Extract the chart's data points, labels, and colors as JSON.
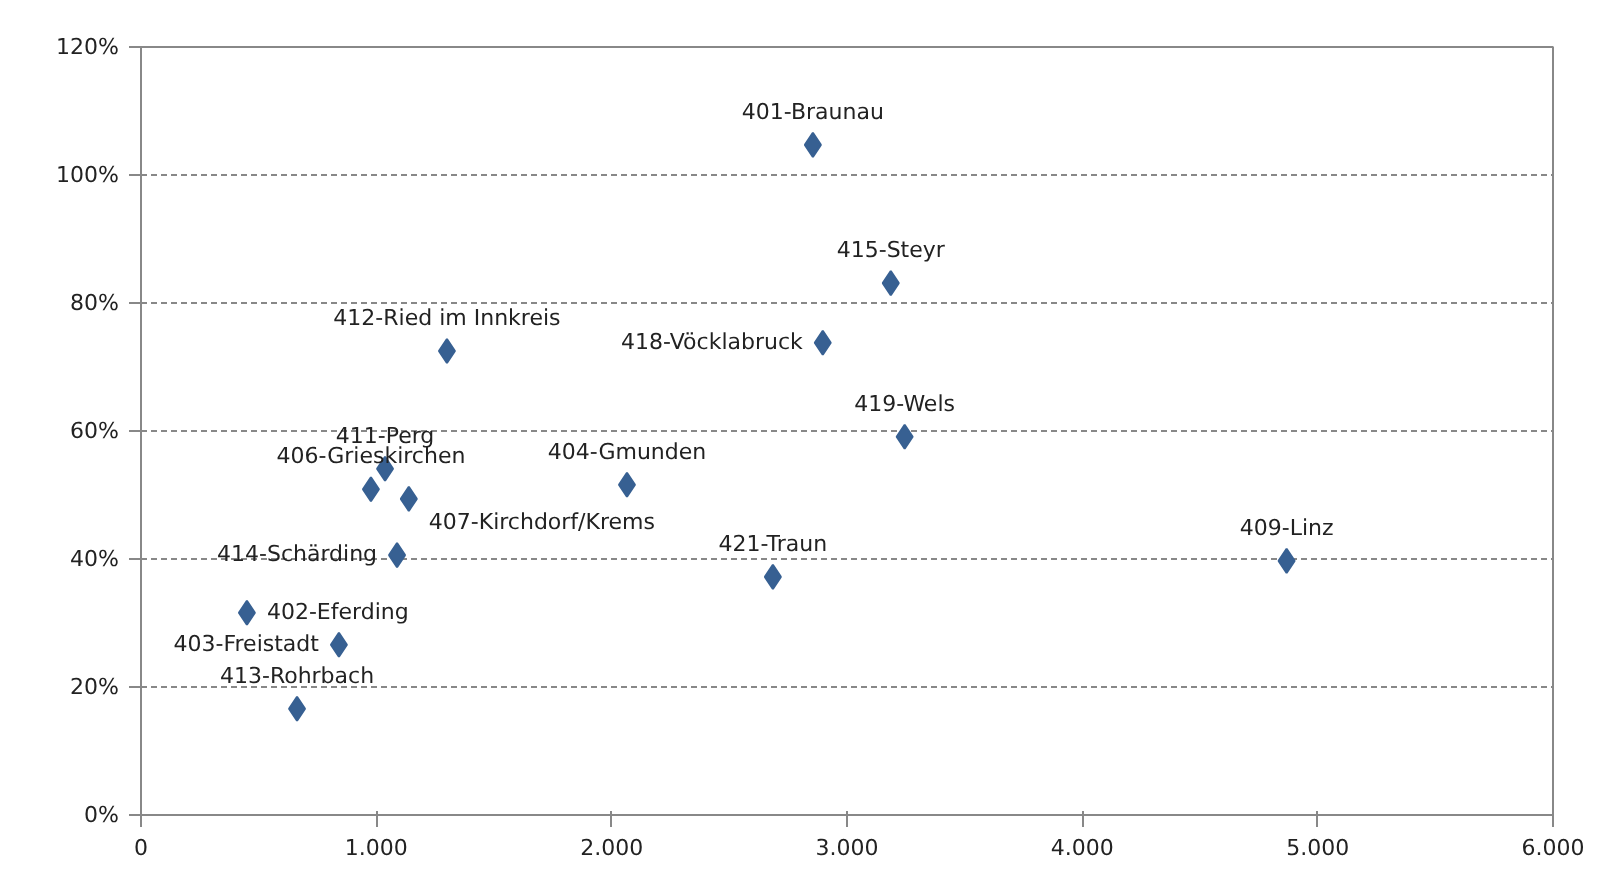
{
  "chart_data": {
    "type": "scatter",
    "marker": "diamond",
    "grid": "y",
    "xlim": [
      0,
      6000
    ],
    "ylim": [
      0,
      120
    ],
    "xticks": [
      0,
      {
        "value": 1000,
        "label": "1.000"
      },
      {
        "value": 2000,
        "label": "2.000"
      },
      {
        "value": 3000,
        "label": "3.000"
      },
      {
        "value": 4000,
        "label": "4.000"
      },
      {
        "value": 5000,
        "label": "5.000"
      },
      {
        "value": 6000,
        "label": "6.000"
      }
    ],
    "yticks": [
      {
        "value": 0,
        "label": "0%"
      },
      {
        "value": 20,
        "label": "20%"
      },
      {
        "value": 40,
        "label": "40%"
      },
      {
        "value": 60,
        "label": "60%"
      },
      {
        "value": 80,
        "label": "80%"
      },
      {
        "value": 100,
        "label": "100%"
      },
      {
        "value": 120,
        "label": "120%"
      }
    ],
    "series": [
      {
        "color": "#376092",
        "x": [
          2855,
          3186,
          2897,
          1300,
          3245,
          2065,
          1037,
          977,
          1138,
          1088,
          2685,
          4868,
          450,
          841,
          663
        ],
        "values": [
          104.7,
          83.1,
          73.8,
          72.5,
          59.1,
          51.6,
          54.1,
          50.9,
          49.4,
          40.6,
          37.2,
          39.7,
          31.6,
          26.6,
          16.6
        ]
      }
    ],
    "annotations": [
      {
        "text": "401-Braunau",
        "x": 2855,
        "y": 104.7
      },
      {
        "text": "415-Steyr",
        "x": 3186,
        "y": 83.1
      },
      {
        "text": "418-Vöcklabruck",
        "x": 2897,
        "y": 73.8
      },
      {
        "text": "412-Ried im Innkreis",
        "x": 1300,
        "y": 72.5
      },
      {
        "text": "419-Wels",
        "x": 3245,
        "y": 59.1
      },
      {
        "text": "404-Gmunden",
        "x": 2065,
        "y": 51.6
      },
      {
        "text": "411-Perg",
        "x": 1037,
        "y": 54.1
      },
      {
        "text": "406-Grieskirchen",
        "x": 977,
        "y": 50.9
      },
      {
        "text": "407-Kirchdorf/Krems",
        "x": 1138,
        "y": 49.4
      },
      {
        "text": "414-Schärding",
        "x": 1088,
        "y": 40.6
      },
      {
        "text": "421-Traun",
        "x": 2685,
        "y": 37.2
      },
      {
        "text": "409-Linz",
        "x": 4868,
        "y": 39.7
      },
      {
        "text": "402-Eferding",
        "x": 450,
        "y": 31.6
      },
      {
        "text": "403-Freistadt",
        "x": 841,
        "y": 26.6
      },
      {
        "text": "413-Rohrbach",
        "x": 663,
        "y": 16.6
      }
    ]
  }
}
